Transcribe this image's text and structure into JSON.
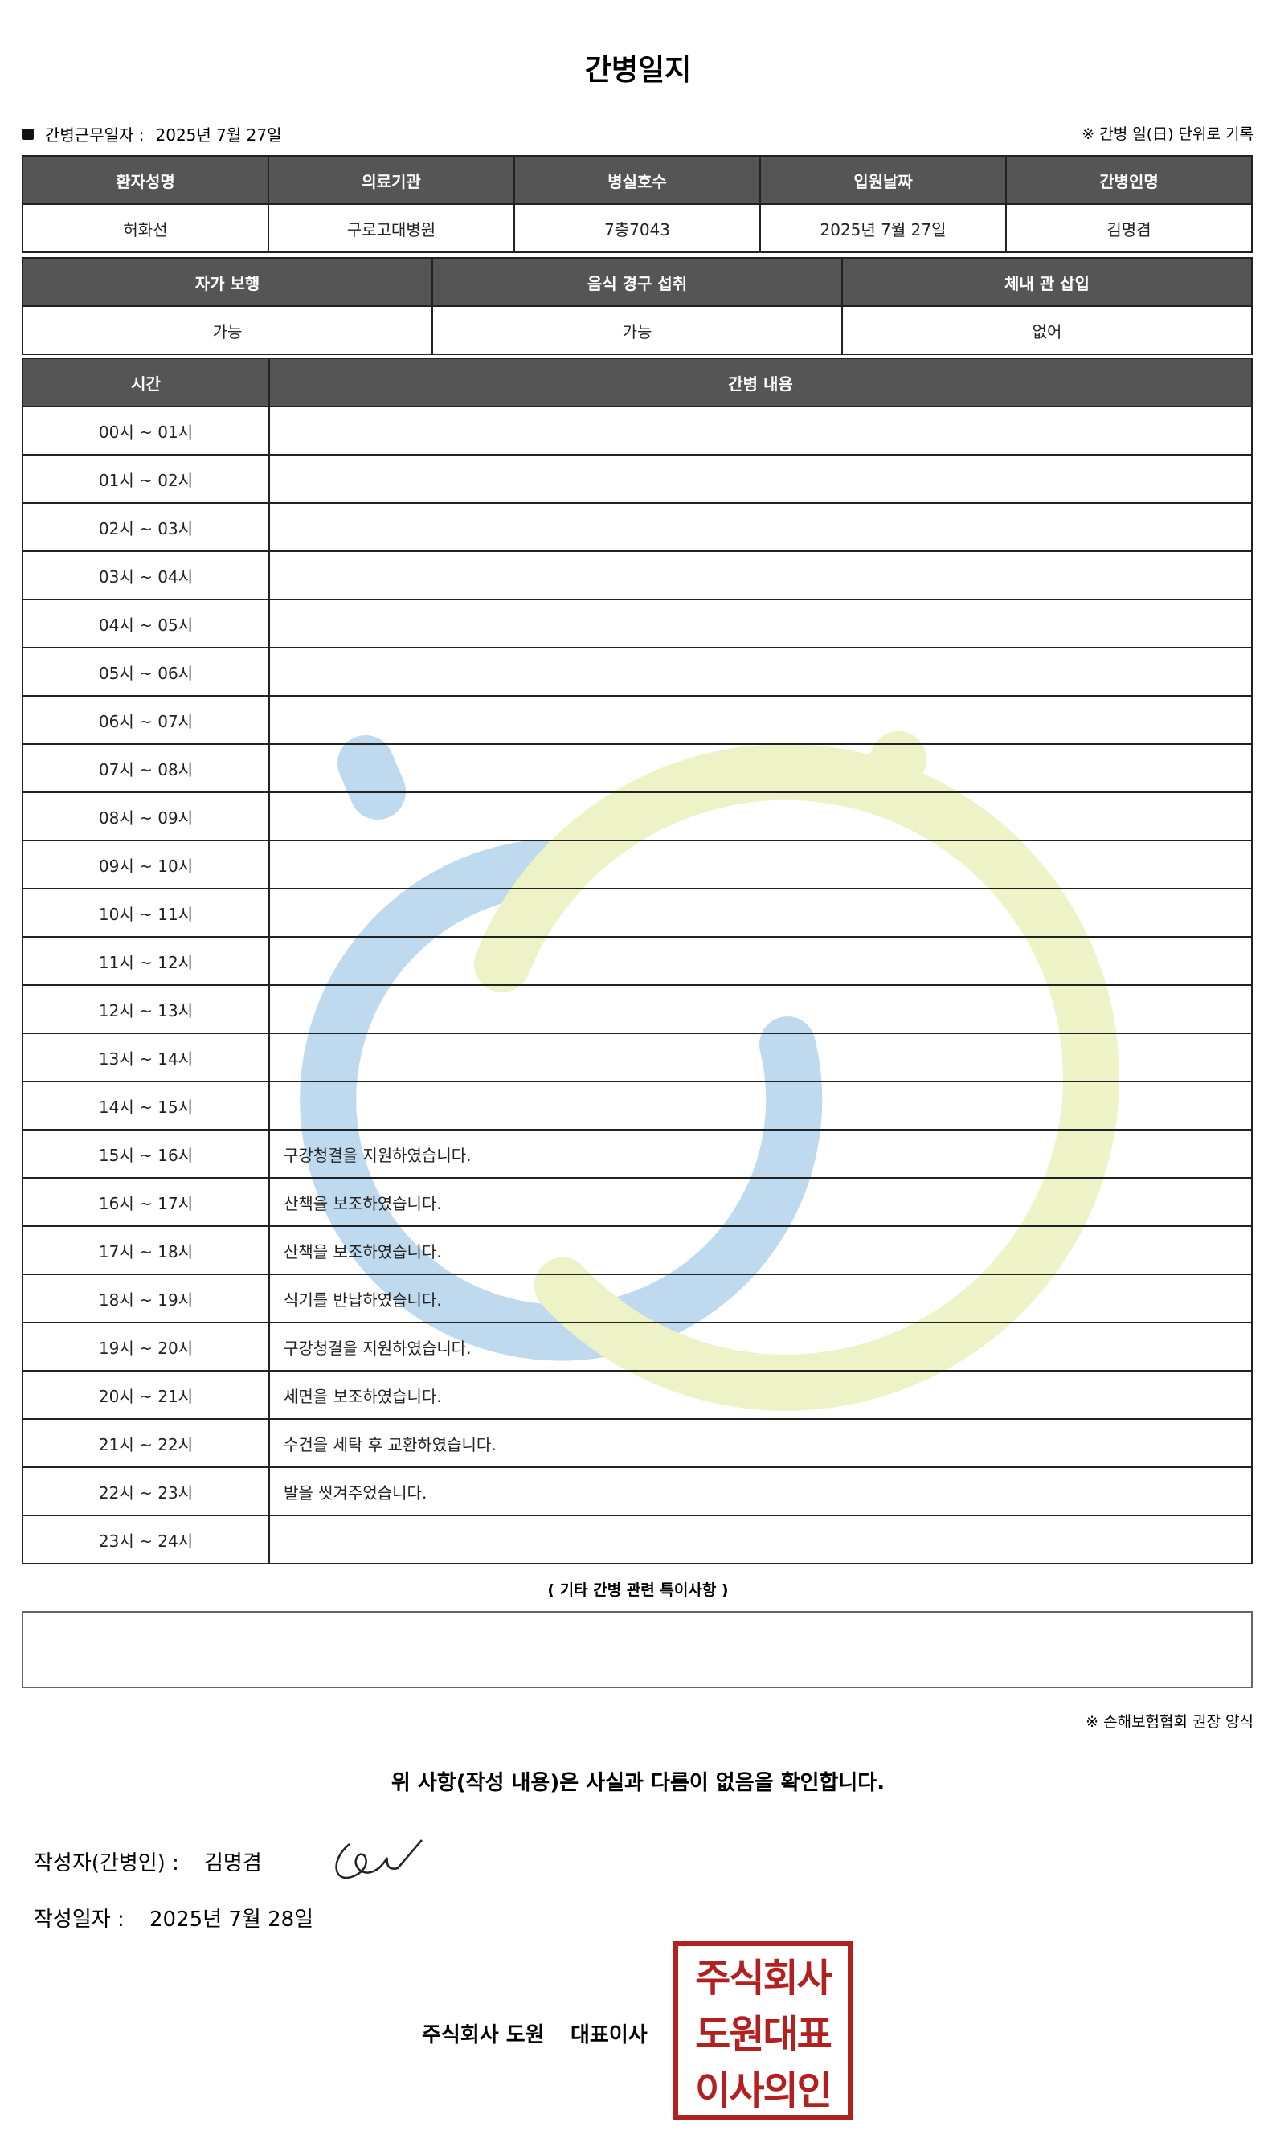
{
  "header": {
    "title": "간병일지",
    "work_date_label": "간병근무일자  :",
    "work_date": "2025년 7월 27일",
    "note": "※ 간병 일(日) 단위로 기록"
  },
  "patient_table": {
    "headers": [
      "환자성명",
      "의료기관",
      "병실호수",
      "입원날짜",
      "간병인명"
    ],
    "values": [
      "허화선",
      "구로고대병원",
      "7층7043",
      "2025년 7월 27일",
      "김명겸"
    ]
  },
  "status_table": {
    "headers": [
      "자가 보행",
      "음식 경구 섭취",
      "체내 관 삽입"
    ],
    "values": [
      "가능",
      "가능",
      "없어"
    ]
  },
  "log_table": {
    "headers": [
      "시간",
      "간병 내용"
    ],
    "rows": [
      [
        "00시 ~ 01시",
        null
      ],
      [
        "01시 ~ 02시",
        null
      ],
      [
        "02시 ~ 03시",
        null
      ],
      [
        "03시 ~ 04시",
        null
      ],
      [
        "04시 ~ 05시",
        null
      ],
      [
        "05시 ~ 06시",
        null
      ],
      [
        "06시 ~ 07시",
        null
      ],
      [
        "07시 ~ 08시",
        null
      ],
      [
        "08시 ~ 09시",
        null
      ],
      [
        "09시 ~ 10시",
        null
      ],
      [
        "10시 ~ 11시",
        null
      ],
      [
        "11시 ~ 12시",
        null
      ],
      [
        "12시 ~ 13시",
        null
      ],
      [
        "13시 ~ 14시",
        null
      ],
      [
        "14시 ~ 15시",
        null
      ],
      [
        "15시 ~ 16시",
        "구강청결을 지원하였습니다."
      ],
      [
        "16시 ~ 17시",
        "산책을 보조하였습니다."
      ],
      [
        "17시 ~ 18시",
        "산책을 보조하였습니다."
      ],
      [
        "18시 ~ 19시",
        "식기를 반납하였습니다."
      ],
      [
        "19시 ~ 20시",
        "구강청결을 지원하였습니다."
      ],
      [
        "20시 ~ 21시",
        "세면을 보조하였습니다."
      ],
      [
        "21시 ~ 22시",
        "수건을 세탁 후 교환하였습니다."
      ],
      [
        "22시 ~ 23시",
        "발을 씻겨주었습니다."
      ],
      [
        "23시 ~ 24시",
        null
      ]
    ]
  },
  "special_notes": {
    "label": "( 기타 간병 관련 특이사항 )"
  },
  "footnote": "※ 손해보험협회 권장 양식",
  "confirmation": "위 사항(작성 내용)은 사실과 다름이 없음을 확인합니다.",
  "writer": {
    "label": "작성자(간병인) :",
    "name": "김명겸"
  },
  "written_date": {
    "label": "작성일자 :",
    "value": "2025년 7월 28일"
  },
  "company": {
    "name": "주식회사 도원",
    "role": "대표이사"
  },
  "stamp": {
    "lines": [
      "주식회사",
      "도원대표",
      "이사의인"
    ]
  }
}
